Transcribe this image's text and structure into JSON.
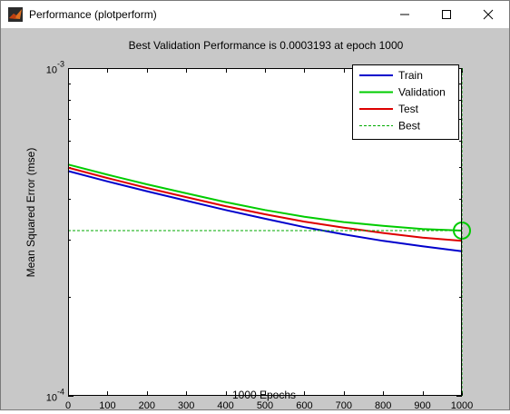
{
  "window": {
    "title": "Performance (plotperform)",
    "minimize_icon": "minimize-icon",
    "maximize_icon": "maximize-icon",
    "close_icon": "close-icon"
  },
  "colors": {
    "figure_bg": "#c8c8c8",
    "axes_bg": "#ffffff",
    "train": "#0000cc",
    "validation": "#00cc00",
    "test": "#dd0000",
    "best": "#00aa00"
  },
  "chart_data": {
    "type": "line",
    "title": "Best Validation Performance is 0.0003193 at epoch 1000",
    "xlabel": "1000 Epochs",
    "ylabel": "Mean Squared Error  (mse)",
    "yscale": "log",
    "xlim": [
      0,
      1000
    ],
    "ylim": [
      0.0001,
      0.001
    ],
    "x_ticks": [
      "0",
      "100",
      "200",
      "300",
      "400",
      "500",
      "600",
      "700",
      "800",
      "900",
      "1000"
    ],
    "y_ticks": [
      {
        "base": "10",
        "exp": "-3",
        "value": 0.001
      },
      {
        "base": "10",
        "exp": "-4",
        "value": 0.0001
      }
    ],
    "legend_position": "top-right",
    "grid": false,
    "x": [
      0,
      100,
      200,
      300,
      400,
      500,
      600,
      700,
      800,
      900,
      1000
    ],
    "series": [
      {
        "name": "Train",
        "color": "#0000cc",
        "style": "solid",
        "values": [
          0.000485,
          0.000451,
          0.000421,
          0.000394,
          0.000369,
          0.000347,
          0.000327,
          0.000311,
          0.000297,
          0.000286,
          0.000276
        ]
      },
      {
        "name": "Validation",
        "color": "#00cc00",
        "style": "solid",
        "values": [
          0.000508,
          0.000473,
          0.000442,
          0.000415,
          0.00039,
          0.000369,
          0.000352,
          0.000339,
          0.00033,
          0.000323,
          0.0003193
        ]
      },
      {
        "name": "Test",
        "color": "#dd0000",
        "style": "solid",
        "values": [
          0.000497,
          0.000462,
          0.000431,
          0.000404,
          0.000379,
          0.000358,
          0.00034,
          0.000326,
          0.000314,
          0.000304,
          0.000297
        ]
      },
      {
        "name": "Best",
        "color": "#00aa00",
        "style": "dashed"
      }
    ],
    "best": {
      "epoch": 1000,
      "value": 0.0003193
    }
  }
}
